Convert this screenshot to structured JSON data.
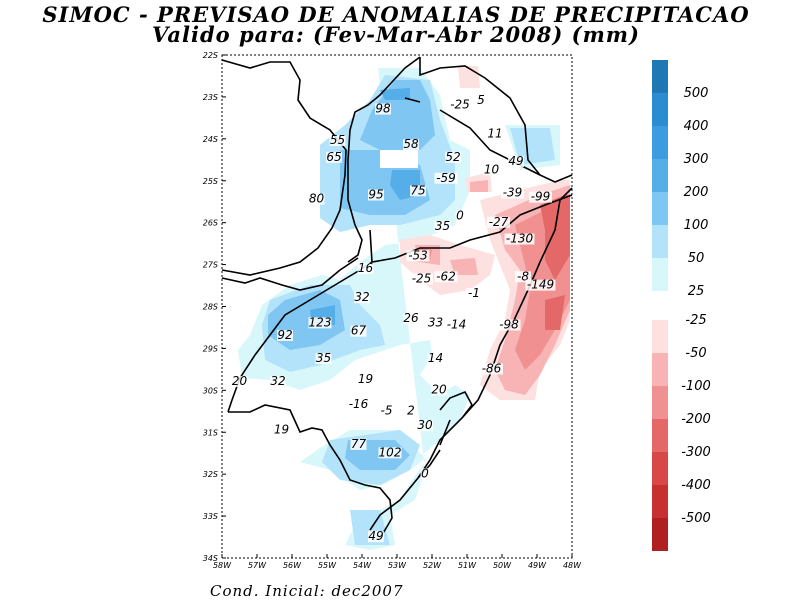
{
  "header": {
    "title_line1": "SIMOC - PREVISAO DE ANOMALIAS DE PRECIPITACAO",
    "title_line2": "Valido para: (Fev-Mar-Abr 2008) (mm)"
  },
  "footer": {
    "cond_label": "Cond. Inicial: dec2007"
  },
  "map": {
    "lat_labels": [
      "22S",
      "23S",
      "24S",
      "25S",
      "26S",
      "27S",
      "28S",
      "29S",
      "30S",
      "31S",
      "32S",
      "33S",
      "34S"
    ],
    "lon_labels": [
      "58W",
      "57W",
      "56W",
      "55W",
      "54W",
      "53W",
      "52W",
      "51W",
      "50W",
      "49W",
      "48W"
    ],
    "values": [
      {
        "text": "98",
        "lon": -53.4,
        "lat": -23.35
      },
      {
        "text": "-25",
        "lon": -51.2,
        "lat": -23.25
      },
      {
        "text": "5",
        "lon": -50.6,
        "lat": -23.15
      },
      {
        "text": "11",
        "lon": -50.2,
        "lat": -23.95
      },
      {
        "text": "55",
        "lon": -54.7,
        "lat": -24.1
      },
      {
        "text": "58",
        "lon": -52.6,
        "lat": -24.2
      },
      {
        "text": "65",
        "lon": -54.8,
        "lat": -24.5
      },
      {
        "text": "52",
        "lon": -51.4,
        "lat": -24.5
      },
      {
        "text": "49",
        "lon": -49.6,
        "lat": -24.6
      },
      {
        "text": "10",
        "lon": -50.3,
        "lat": -24.8
      },
      {
        "text": "-59",
        "lon": -51.6,
        "lat": -25.0
      },
      {
        "text": "-39",
        "lon": -49.7,
        "lat": -25.35
      },
      {
        "text": "-99",
        "lon": -48.9,
        "lat": -25.45
      },
      {
        "text": "80",
        "lon": -55.3,
        "lat": -25.5
      },
      {
        "text": "95",
        "lon": -53.6,
        "lat": -25.4
      },
      {
        "text": "75",
        "lon": -52.4,
        "lat": -25.3
      },
      {
        "text": "0",
        "lon": -51.2,
        "lat": -25.9
      },
      {
        "text": "-27",
        "lon": -50.1,
        "lat": -26.05
      },
      {
        "text": "35",
        "lon": -51.7,
        "lat": -26.15
      },
      {
        "text": "-130",
        "lon": -49.5,
        "lat": -26.45
      },
      {
        "text": "-53",
        "lon": -52.4,
        "lat": -26.85
      },
      {
        "text": "16",
        "lon": -53.9,
        "lat": -27.15
      },
      {
        "text": "-8",
        "lon": -49.4,
        "lat": -27.35
      },
      {
        "text": "-25",
        "lon": -52.3,
        "lat": -27.4
      },
      {
        "text": "-62",
        "lon": -51.6,
        "lat": -27.35
      },
      {
        "text": "-149",
        "lon": -48.9,
        "lat": -27.55
      },
      {
        "text": "-1",
        "lon": -50.8,
        "lat": -27.75
      },
      {
        "text": "32",
        "lon": -54.0,
        "lat": -27.85
      },
      {
        "text": "123",
        "lon": -55.2,
        "lat": -28.45
      },
      {
        "text": "26",
        "lon": -52.6,
        "lat": -28.35
      },
      {
        "text": "33",
        "lon": -51.9,
        "lat": -28.45
      },
      {
        "text": "-14",
        "lon": -51.3,
        "lat": -28.5
      },
      {
        "text": "-98",
        "lon": -49.8,
        "lat": -28.5
      },
      {
        "text": "92",
        "lon": -56.2,
        "lat": -28.75
      },
      {
        "text": "67",
        "lon": -54.1,
        "lat": -28.65
      },
      {
        "text": "35",
        "lon": -55.1,
        "lat": -29.3
      },
      {
        "text": "14",
        "lon": -51.9,
        "lat": -29.3
      },
      {
        "text": "-86",
        "lon": -50.3,
        "lat": -29.55
      },
      {
        "text": "19",
        "lon": -53.9,
        "lat": -29.8
      },
      {
        "text": "20",
        "lon": -57.5,
        "lat": -29.85
      },
      {
        "text": "32",
        "lon": -56.4,
        "lat": -29.85
      },
      {
        "text": "20",
        "lon": -51.8,
        "lat": -30.05
      },
      {
        "text": "-16",
        "lon": -54.1,
        "lat": -30.4
      },
      {
        "text": "-5",
        "lon": -53.3,
        "lat": -30.55
      },
      {
        "text": "2",
        "lon": -52.6,
        "lat": -30.55
      },
      {
        "text": "30",
        "lon": -52.2,
        "lat": -30.9
      },
      {
        "text": "19",
        "lon": -56.3,
        "lat": -31.0
      },
      {
        "text": "77",
        "lon": -54.1,
        "lat": -31.35
      },
      {
        "text": "102",
        "lon": -53.2,
        "lat": -31.55
      },
      {
        "text": "0",
        "lon": -52.2,
        "lat": -32.05
      },
      {
        "text": "49",
        "lon": -53.6,
        "lat": -33.55
      }
    ]
  },
  "colorbar": {
    "positive": [
      {
        "label": "500",
        "color": "#1f78b4"
      },
      {
        "label": "400",
        "color": "#2b8cd0"
      },
      {
        "label": "300",
        "color": "#3d9be0"
      },
      {
        "label": "200",
        "color": "#56aee8"
      },
      {
        "label": "100",
        "color": "#7fc6f3"
      },
      {
        "label": "50",
        "color": "#b3e2fb"
      },
      {
        "label": "25",
        "color": "#d8f7fb"
      }
    ],
    "negative": [
      {
        "label": "-25",
        "color": "#fde0e0"
      },
      {
        "label": "-50",
        "color": "#f8b4b4"
      },
      {
        "label": "-100",
        "color": "#f09090"
      },
      {
        "label": "-200",
        "color": "#e56868"
      },
      {
        "label": "-300",
        "color": "#d94848"
      },
      {
        "label": "-400",
        "color": "#c83030"
      },
      {
        "label": "-500",
        "color": "#b02020"
      }
    ]
  }
}
